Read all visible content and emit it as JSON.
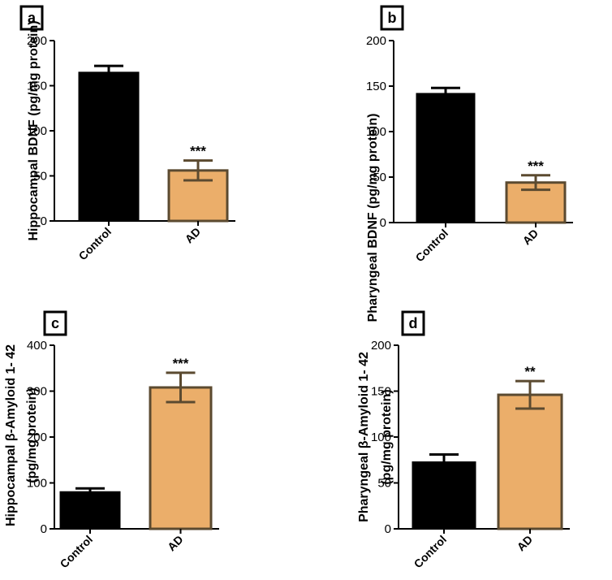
{
  "colors": {
    "control_bar": "#000000",
    "ad_bar": "#ebae6a",
    "ad_edge": "#5b4a30",
    "axis": "#000000"
  },
  "chart_data": [
    {
      "type": "bar",
      "panel": "a",
      "categories": [
        "Control",
        "AD"
      ],
      "values": [
        165,
        56
      ],
      "errors": [
        7,
        11
      ],
      "significance": [
        "",
        "***"
      ],
      "ylabel": "Hippocampal BDNF (pg/mg protein)",
      "ylim": [
        0,
        200
      ],
      "yticks": [
        0,
        50,
        100,
        150,
        200
      ]
    },
    {
      "type": "bar",
      "panel": "b",
      "categories": [
        "Control",
        "AD"
      ],
      "values": [
        142,
        44
      ],
      "errors": [
        6,
        8
      ],
      "significance": [
        "",
        "***"
      ],
      "ylabel": "Pharyngeal BDNF (pg/mg protein)",
      "ylim": [
        0,
        200
      ],
      "yticks": [
        0,
        50,
        100,
        150,
        200
      ]
    },
    {
      "type": "bar",
      "panel": "c",
      "categories": [
        "Control",
        "AD"
      ],
      "values": [
        81,
        308
      ],
      "errors": [
        7,
        32
      ],
      "significance": [
        "",
        "***"
      ],
      "ylabel_line1": "Hippocampal β-Amyloid 1- 42",
      "ylabel_line2": "(pg/mg protein)",
      "ylim": [
        0,
        400
      ],
      "yticks": [
        0,
        100,
        200,
        300,
        400
      ]
    },
    {
      "type": "bar",
      "panel": "d",
      "categories": [
        "Control",
        "AD"
      ],
      "values": [
        73,
        146
      ],
      "errors": [
        8,
        15
      ],
      "significance": [
        "",
        "**"
      ],
      "ylabel_line1": "Pharyngeal β-Amyloid 1- 42",
      "ylabel_line2": "(pg/mg protein)",
      "ylim": [
        0,
        200
      ],
      "yticks": [
        0,
        50,
        100,
        150,
        200
      ]
    }
  ]
}
